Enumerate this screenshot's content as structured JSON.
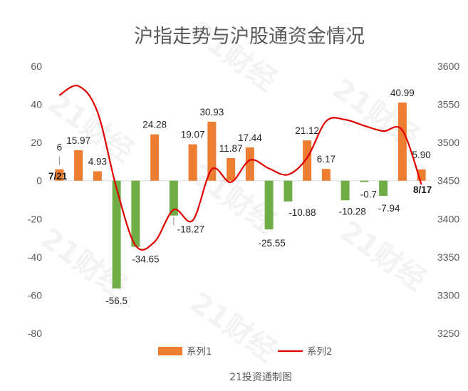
{
  "chart_data": {
    "type": "bar",
    "title": "沪指走势与沪股通资金情况",
    "source_text": "21投资通制图",
    "watermark_text": "21财经",
    "start_label": "7/21",
    "end_label": "8/17",
    "left_axis": {
      "ylim": [
        -80,
        60
      ],
      "ticks": [
        60,
        40,
        20,
        0,
        -20,
        -40,
        -60,
        -80
      ]
    },
    "right_axis": {
      "ylim": [
        3250,
        3600
      ],
      "ticks": [
        3600,
        3550,
        3500,
        3450,
        3400,
        3350,
        3300,
        3250
      ]
    },
    "grid": false,
    "legend_position": "bottom",
    "colors": {
      "positive": "#ed7d31",
      "negative": "#70ad47",
      "line": "#e00000",
      "axis": "#d9d9d9"
    },
    "series": [
      {
        "name": "系列1",
        "type": "bar",
        "values": [
          6,
          15.97,
          4.93,
          -56.5,
          -34.65,
          24.28,
          -18.27,
          19.07,
          30.93,
          11.87,
          17.44,
          -25.55,
          -10.88,
          21.12,
          6.17,
          -10.28,
          -0.7,
          -7.94,
          40.99,
          5.9
        ],
        "labels": [
          "6",
          "15.97",
          "4.93",
          "-56.5",
          "-34.65",
          "24.28",
          "-18.27",
          "19.07",
          "30.93",
          "11.87",
          "17.44",
          "-25.55",
          "-10.88",
          "21.12",
          "6.17",
          "-10.28",
          "-0.7",
          "-7.94",
          "40.99",
          "5.90"
        ]
      },
      {
        "name": "系列2",
        "type": "line",
        "values": [
          3562,
          3574,
          3540,
          3440,
          3365,
          3370,
          3412,
          3398,
          3465,
          3448,
          3477,
          3466,
          3458,
          3480,
          3528,
          3530,
          3522,
          3515,
          3516,
          3445
        ]
      }
    ]
  }
}
